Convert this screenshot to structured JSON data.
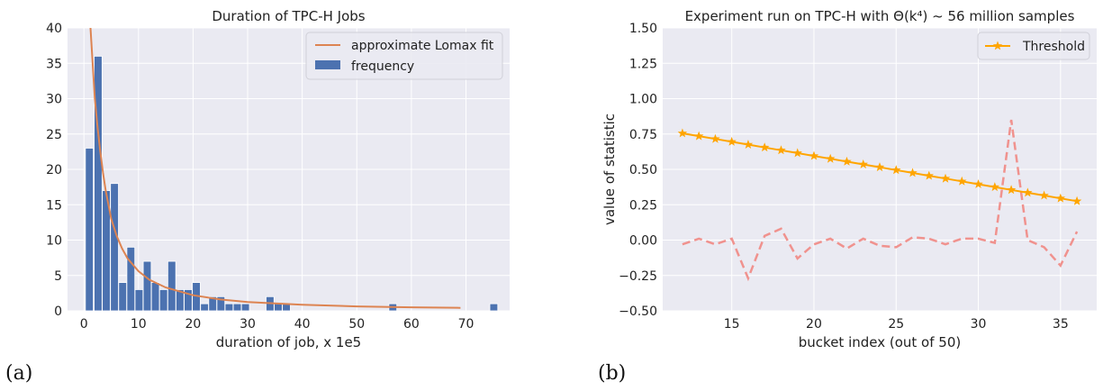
{
  "panel_labels": [
    "(a)",
    "(b)"
  ],
  "chart_data": [
    {
      "type": "bar",
      "title": "Duration of TPC-H Jobs",
      "xlabel": "duration of job, x 1e5",
      "ylabel": "",
      "xlim": [
        -3,
        78
      ],
      "ylim": [
        0,
        40
      ],
      "xticks": [
        0,
        10,
        20,
        30,
        40,
        50,
        60,
        70
      ],
      "yticks": [
        0,
        5,
        10,
        15,
        20,
        25,
        30,
        35,
        40
      ],
      "grid": true,
      "legend": {
        "placement": "top-right",
        "entries": [
          "approximate Lomax fit",
          "frequency"
        ]
      },
      "bar_width": 1.45,
      "series": [
        {
          "name": "frequency",
          "kind": "histogram",
          "color": "#4c72b0",
          "bins": [
            [
              1.0,
              23
            ],
            [
              2.6,
              36
            ],
            [
              4.1,
              17
            ],
            [
              5.6,
              18
            ],
            [
              7.1,
              4
            ],
            [
              8.6,
              9
            ],
            [
              10.1,
              3
            ],
            [
              11.6,
              7
            ],
            [
              13.1,
              4
            ],
            [
              14.6,
              3
            ],
            [
              16.1,
              7
            ],
            [
              17.6,
              3
            ],
            [
              19.1,
              3
            ],
            [
              20.6,
              4
            ],
            [
              22.1,
              1
            ],
            [
              23.6,
              2
            ],
            [
              25.1,
              2
            ],
            [
              26.6,
              1
            ],
            [
              28.1,
              1
            ],
            [
              29.6,
              1
            ],
            [
              34.1,
              2
            ],
            [
              35.6,
              1
            ],
            [
              37.1,
              1
            ],
            [
              56.6,
              1
            ],
            [
              75.1,
              1
            ]
          ]
        },
        {
          "name": "approximate Lomax fit",
          "kind": "line",
          "color": "#dd8452",
          "x": [
            1.2,
            1.6,
            2.0,
            2.5,
            3.0,
            3.5,
            4.0,
            5.0,
            6.0,
            7.0,
            8.0,
            10.0,
            12.0,
            15.0,
            20.0,
            25.0,
            30.0,
            40.0,
            50.0,
            60.0,
            69.0
          ],
          "y": [
            40.0,
            35.0,
            30.0,
            26.0,
            22.5,
            19.5,
            17.0,
            13.0,
            10.6,
            8.8,
            7.4,
            5.6,
            4.4,
            3.3,
            2.2,
            1.6,
            1.25,
            0.85,
            0.63,
            0.5,
            0.42
          ]
        }
      ]
    },
    {
      "type": "line",
      "title": "Experiment run on TPC-H with Θ(k⁴) ~ 56 million samples",
      "xlabel": "bucket index (out of 50)",
      "ylabel": "value of statistic",
      "xlim": [
        10.8,
        37.2
      ],
      "ylim": [
        -0.5,
        1.5
      ],
      "xticks": [
        15,
        20,
        25,
        30,
        35
      ],
      "yticks": [
        -0.5,
        -0.25,
        0.0,
        0.25,
        0.5,
        0.75,
        1.0,
        1.25,
        1.5
      ],
      "ytick_labels": [
        "−0.50",
        "−0.25",
        "0.00",
        "0.25",
        "0.50",
        "0.75",
        "1.00",
        "1.25",
        "1.50"
      ],
      "grid": true,
      "legend": {
        "placement": "top-right",
        "entries": [
          "Threshold"
        ]
      },
      "series": [
        {
          "name": "Threshold",
          "color": "#ffa500",
          "marker": "star",
          "x": [
            12,
            13,
            14,
            15,
            16,
            17,
            18,
            19,
            20,
            21,
            22,
            23,
            24,
            25,
            26,
            27,
            28,
            29,
            30,
            31,
            32,
            33,
            34,
            35,
            36
          ],
          "y": [
            0.755,
            0.735,
            0.715,
            0.695,
            0.675,
            0.655,
            0.635,
            0.615,
            0.595,
            0.575,
            0.555,
            0.535,
            0.515,
            0.495,
            0.475,
            0.455,
            0.435,
            0.415,
            0.395,
            0.375,
            0.355,
            0.335,
            0.315,
            0.295,
            0.275
          ]
        },
        {
          "name": "",
          "color": "#f0928e",
          "dashed": true,
          "x": [
            12,
            13,
            14,
            15,
            16,
            17,
            18,
            19,
            20,
            21,
            22,
            23,
            24,
            25,
            26,
            27,
            28,
            29,
            30,
            31,
            32,
            33,
            34,
            35,
            36
          ],
          "y": [
            -0.03,
            0.01,
            -0.03,
            0.01,
            -0.27,
            0.03,
            0.08,
            -0.13,
            -0.03,
            0.01,
            -0.06,
            0.01,
            -0.04,
            -0.05,
            0.02,
            0.01,
            -0.03,
            0.01,
            0.01,
            -0.02,
            0.85,
            0.0,
            -0.05,
            -0.18,
            0.06
          ]
        }
      ]
    }
  ]
}
